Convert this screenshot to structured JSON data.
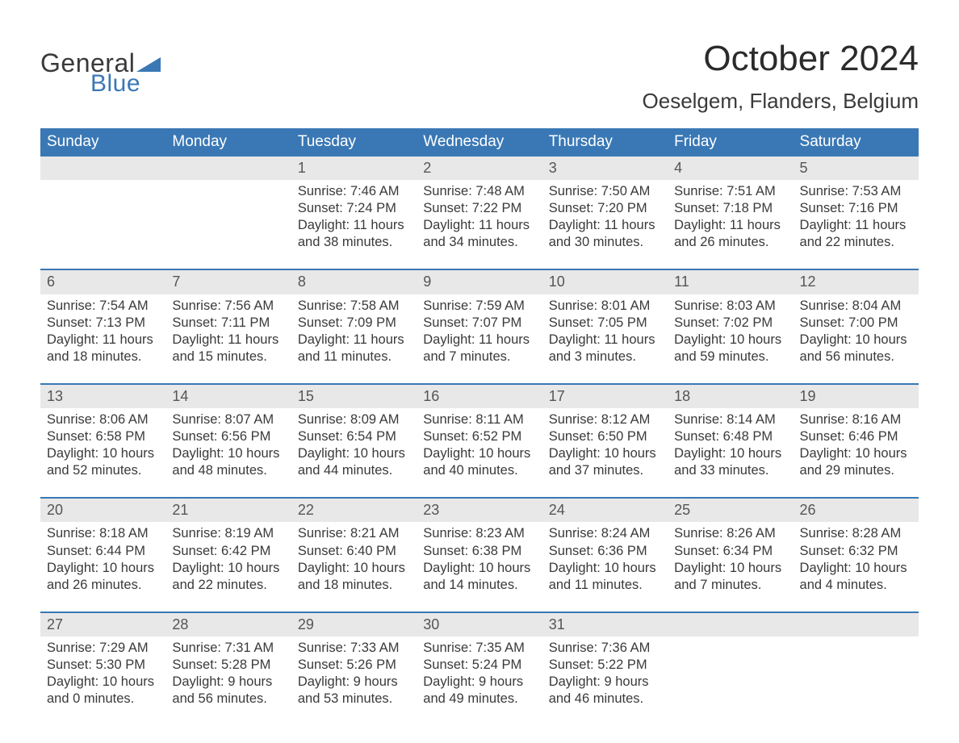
{
  "brand": {
    "word1": "General",
    "word2": "Blue",
    "logo_color_text": "#3a3a3a",
    "logo_color_blue": "#3a78b5",
    "triangle_color": "#3a78b5"
  },
  "header": {
    "month_title": "October 2024",
    "location": "Oeselgem, Flanders, Belgium"
  },
  "style": {
    "header_bg": "#3a78b5",
    "header_text": "#ffffff",
    "daynum_bg": "#e8e8e8",
    "daynum_color": "#555555",
    "body_text": "#3a3a3a",
    "week_border": "#3a78b5",
    "page_bg": "#ffffff",
    "title_fontsize_pt": 33,
    "location_fontsize_pt": 20,
    "weekday_fontsize_pt": 14,
    "body_fontsize_pt": 12
  },
  "weekdays": [
    "Sunday",
    "Monday",
    "Tuesday",
    "Wednesday",
    "Thursday",
    "Friday",
    "Saturday"
  ],
  "weeks": [
    [
      null,
      null,
      {
        "n": "1",
        "sunrise": "7:46 AM",
        "sunset": "7:24 PM",
        "daylight": "11 hours and 38 minutes."
      },
      {
        "n": "2",
        "sunrise": "7:48 AM",
        "sunset": "7:22 PM",
        "daylight": "11 hours and 34 minutes."
      },
      {
        "n": "3",
        "sunrise": "7:50 AM",
        "sunset": "7:20 PM",
        "daylight": "11 hours and 30 minutes."
      },
      {
        "n": "4",
        "sunrise": "7:51 AM",
        "sunset": "7:18 PM",
        "daylight": "11 hours and 26 minutes."
      },
      {
        "n": "5",
        "sunrise": "7:53 AM",
        "sunset": "7:16 PM",
        "daylight": "11 hours and 22 minutes."
      }
    ],
    [
      {
        "n": "6",
        "sunrise": "7:54 AM",
        "sunset": "7:13 PM",
        "daylight": "11 hours and 18 minutes."
      },
      {
        "n": "7",
        "sunrise": "7:56 AM",
        "sunset": "7:11 PM",
        "daylight": "11 hours and 15 minutes."
      },
      {
        "n": "8",
        "sunrise": "7:58 AM",
        "sunset": "7:09 PM",
        "daylight": "11 hours and 11 minutes."
      },
      {
        "n": "9",
        "sunrise": "7:59 AM",
        "sunset": "7:07 PM",
        "daylight": "11 hours and 7 minutes."
      },
      {
        "n": "10",
        "sunrise": "8:01 AM",
        "sunset": "7:05 PM",
        "daylight": "11 hours and 3 minutes."
      },
      {
        "n": "11",
        "sunrise": "8:03 AM",
        "sunset": "7:02 PM",
        "daylight": "10 hours and 59 minutes."
      },
      {
        "n": "12",
        "sunrise": "8:04 AM",
        "sunset": "7:00 PM",
        "daylight": "10 hours and 56 minutes."
      }
    ],
    [
      {
        "n": "13",
        "sunrise": "8:06 AM",
        "sunset": "6:58 PM",
        "daylight": "10 hours and 52 minutes."
      },
      {
        "n": "14",
        "sunrise": "8:07 AM",
        "sunset": "6:56 PM",
        "daylight": "10 hours and 48 minutes."
      },
      {
        "n": "15",
        "sunrise": "8:09 AM",
        "sunset": "6:54 PM",
        "daylight": "10 hours and 44 minutes."
      },
      {
        "n": "16",
        "sunrise": "8:11 AM",
        "sunset": "6:52 PM",
        "daylight": "10 hours and 40 minutes."
      },
      {
        "n": "17",
        "sunrise": "8:12 AM",
        "sunset": "6:50 PM",
        "daylight": "10 hours and 37 minutes."
      },
      {
        "n": "18",
        "sunrise": "8:14 AM",
        "sunset": "6:48 PM",
        "daylight": "10 hours and 33 minutes."
      },
      {
        "n": "19",
        "sunrise": "8:16 AM",
        "sunset": "6:46 PM",
        "daylight": "10 hours and 29 minutes."
      }
    ],
    [
      {
        "n": "20",
        "sunrise": "8:18 AM",
        "sunset": "6:44 PM",
        "daylight": "10 hours and 26 minutes."
      },
      {
        "n": "21",
        "sunrise": "8:19 AM",
        "sunset": "6:42 PM",
        "daylight": "10 hours and 22 minutes."
      },
      {
        "n": "22",
        "sunrise": "8:21 AM",
        "sunset": "6:40 PM",
        "daylight": "10 hours and 18 minutes."
      },
      {
        "n": "23",
        "sunrise": "8:23 AM",
        "sunset": "6:38 PM",
        "daylight": "10 hours and 14 minutes."
      },
      {
        "n": "24",
        "sunrise": "8:24 AM",
        "sunset": "6:36 PM",
        "daylight": "10 hours and 11 minutes."
      },
      {
        "n": "25",
        "sunrise": "8:26 AM",
        "sunset": "6:34 PM",
        "daylight": "10 hours and 7 minutes."
      },
      {
        "n": "26",
        "sunrise": "8:28 AM",
        "sunset": "6:32 PM",
        "daylight": "10 hours and 4 minutes."
      }
    ],
    [
      {
        "n": "27",
        "sunrise": "7:29 AM",
        "sunset": "5:30 PM",
        "daylight": "10 hours and 0 minutes."
      },
      {
        "n": "28",
        "sunrise": "7:31 AM",
        "sunset": "5:28 PM",
        "daylight": "9 hours and 56 minutes."
      },
      {
        "n": "29",
        "sunrise": "7:33 AM",
        "sunset": "5:26 PM",
        "daylight": "9 hours and 53 minutes."
      },
      {
        "n": "30",
        "sunrise": "7:35 AM",
        "sunset": "5:24 PM",
        "daylight": "9 hours and 49 minutes."
      },
      {
        "n": "31",
        "sunrise": "7:36 AM",
        "sunset": "5:22 PM",
        "daylight": "9 hours and 46 minutes."
      },
      null,
      null
    ]
  ],
  "labels": {
    "sunrise_prefix": "Sunrise: ",
    "sunset_prefix": "Sunset: ",
    "daylight_prefix": "Daylight: "
  }
}
